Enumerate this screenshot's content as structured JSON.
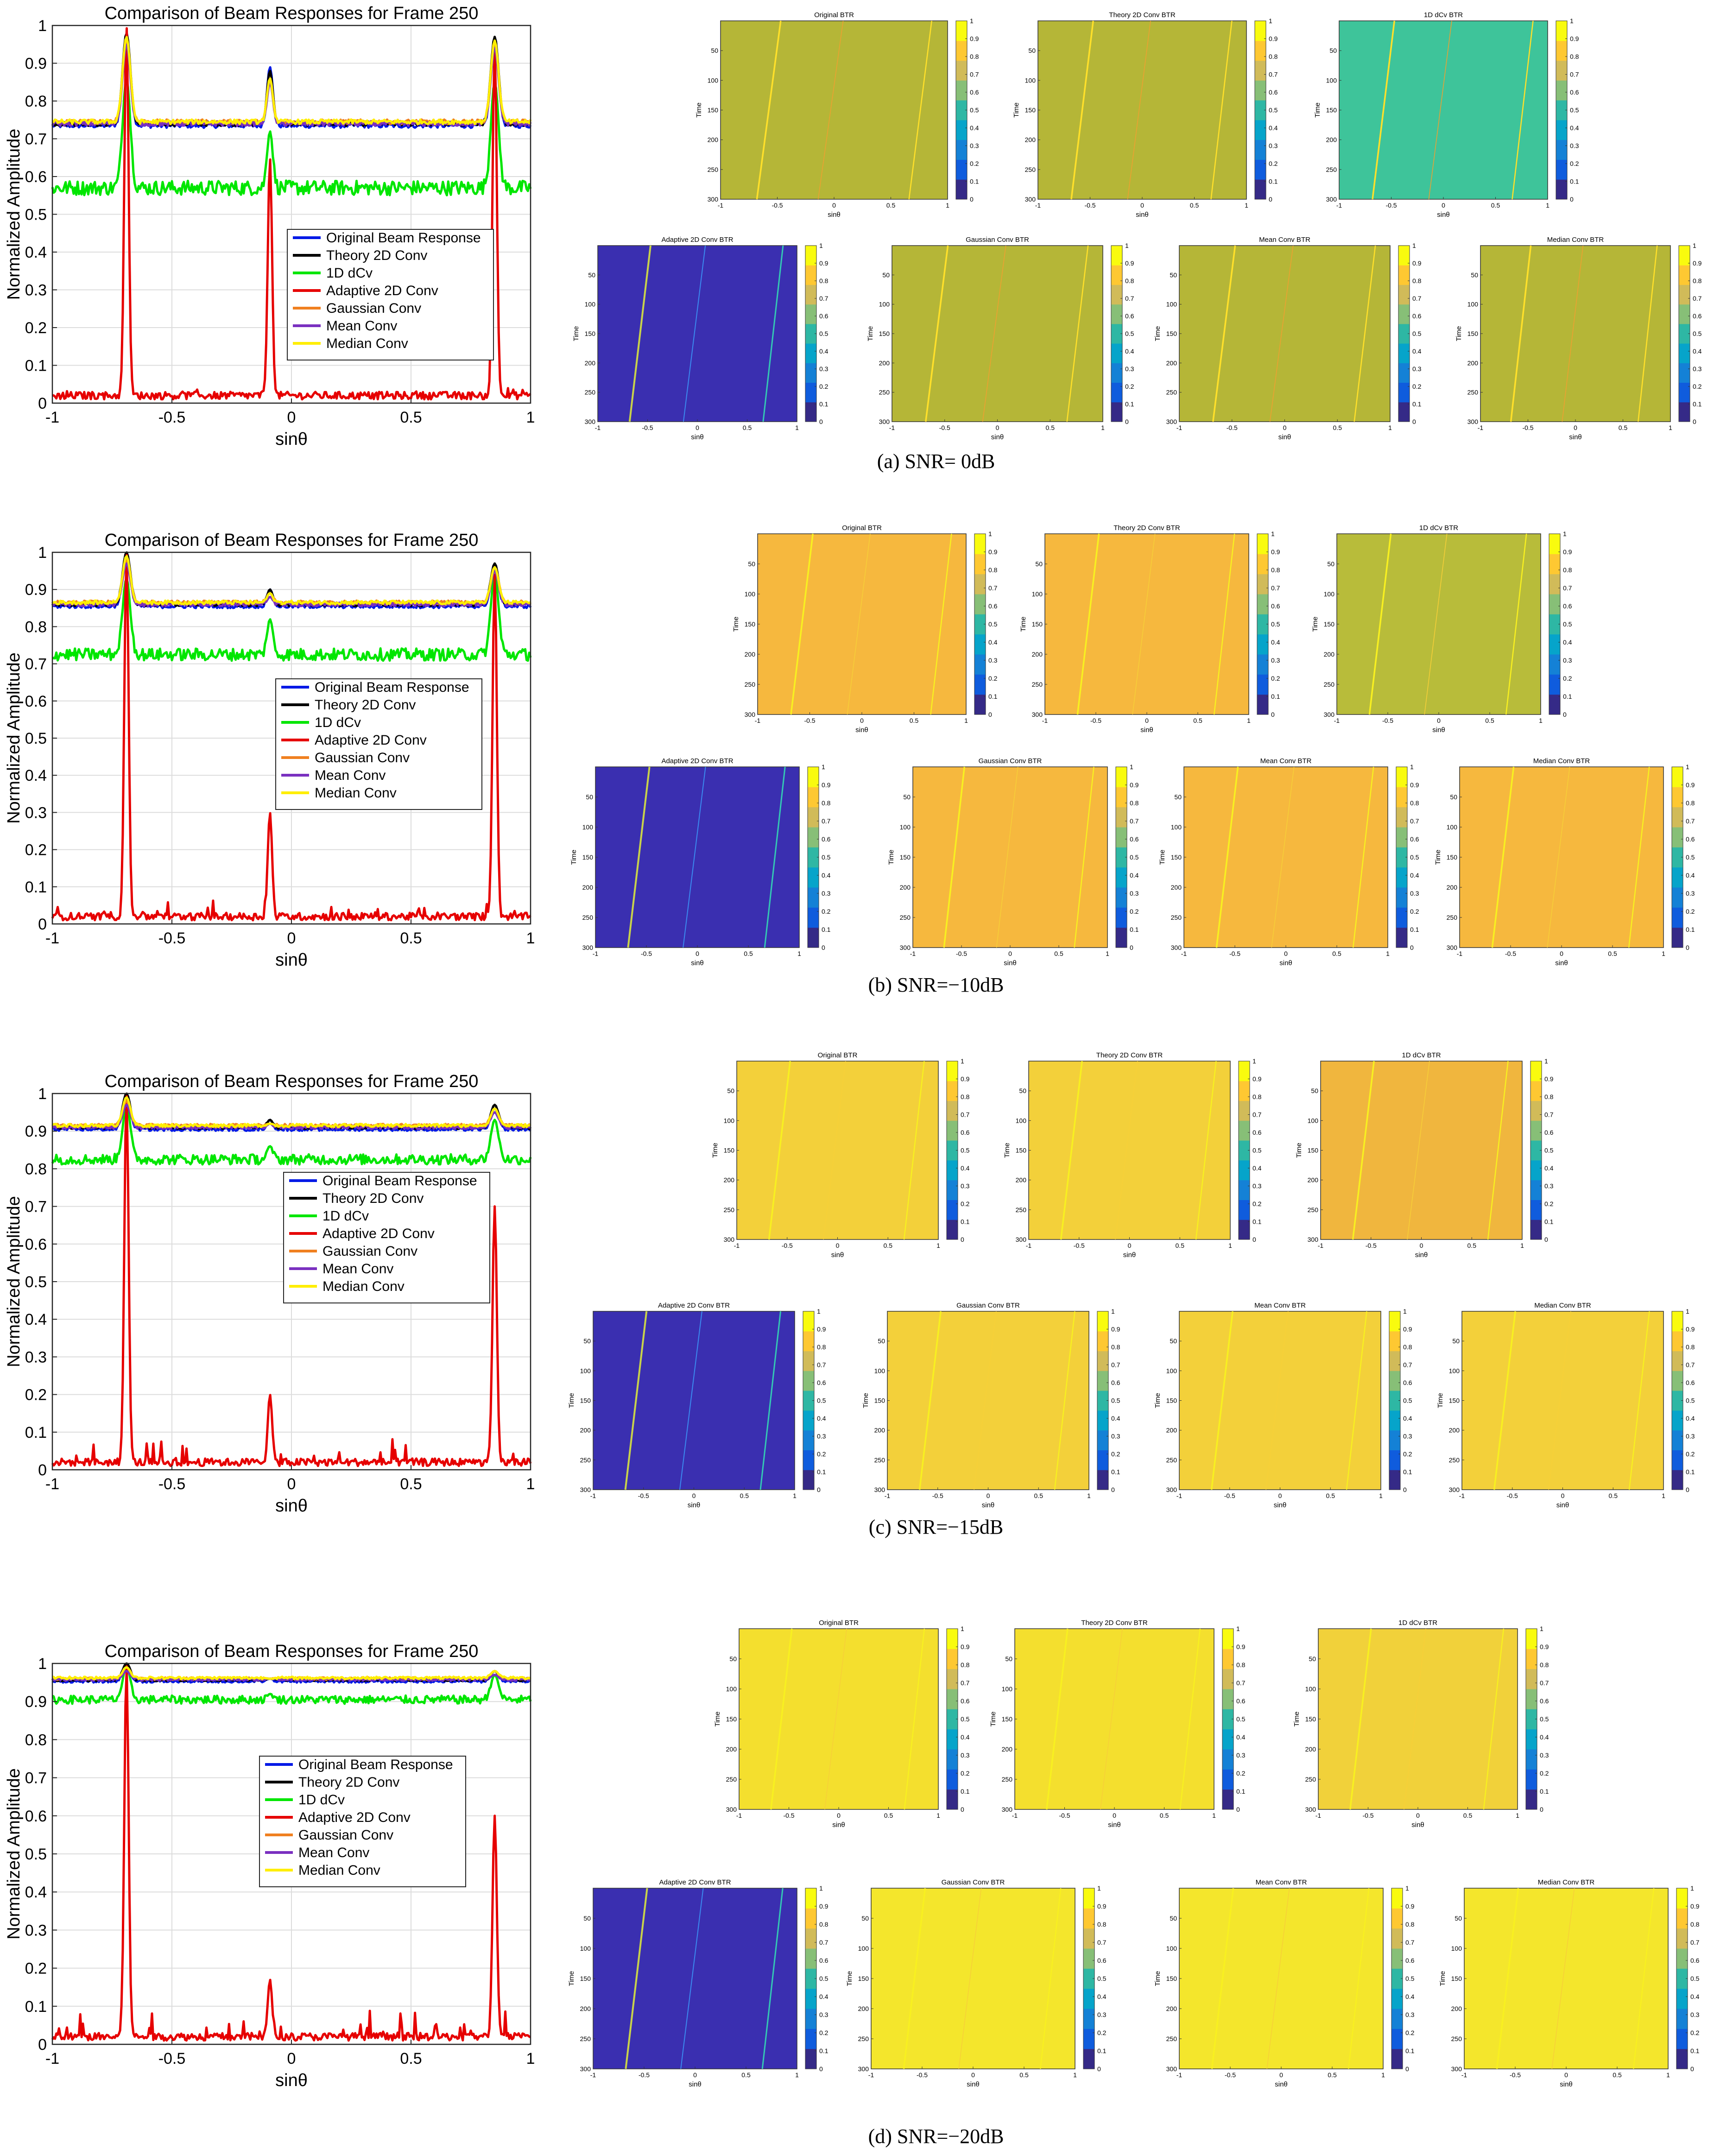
{
  "figure": {
    "rows": [
      {
        "caption": "(a) SNR= 0dB",
        "line_plot": {
          "title": "Comparison of Beam Responses for Frame 250",
          "xlabel": "sinθ",
          "ylabel": "Normalized Amplitude",
          "xlim": [
            -1,
            1
          ],
          "ylim": [
            0,
            1
          ],
          "xticks": [
            "-1",
            "-0.5",
            "0",
            "0.5",
            "1"
          ],
          "yticks": [
            "0",
            "0.1",
            "0.2",
            "0.3",
            "0.4",
            "0.5",
            "0.6",
            "0.7",
            "0.8",
            "0.9",
            "1"
          ]
        },
        "panels": [
          {
            "title": "Original BTR",
            "bg": "#b5b637"
          },
          {
            "title": "Theory 2D Conv BTR",
            "bg": "#b5b637"
          },
          {
            "title": "1D dCv BTR",
            "bg": "#3ec49a"
          },
          {
            "title": "Adaptive 2D Conv BTR",
            "bg": "#3a2fb0"
          },
          {
            "title": "Gaussian Conv BTR",
            "bg": "#b5b637"
          },
          {
            "title": "Mean Conv BTR",
            "bg": "#b5b637"
          },
          {
            "title": "Median Conv BTR",
            "bg": "#b5b637"
          }
        ]
      },
      {
        "caption": "(b) SNR=−10dB",
        "line_plot": {
          "title": "Comparison of Beam Responses for Frame 250",
          "xlabel": "sinθ",
          "ylabel": "Normalized Amplitude",
          "xlim": [
            -1,
            1
          ],
          "ylim": [
            0,
            1
          ],
          "xticks": [
            "-1",
            "-0.5",
            "0",
            "0.5",
            "1"
          ],
          "yticks": [
            "0",
            "0.1",
            "0.2",
            "0.3",
            "0.4",
            "0.5",
            "0.6",
            "0.7",
            "0.8",
            "0.9",
            "1"
          ]
        },
        "panels": [
          {
            "title": "Original BTR",
            "bg": "#f6b83e"
          },
          {
            "title": "Theory 2D Conv BTR",
            "bg": "#f6b83e"
          },
          {
            "title": "1D dCv BTR",
            "bg": "#b8bc3a"
          },
          {
            "title": "Adaptive 2D Conv BTR",
            "bg": "#3a2fb0"
          },
          {
            "title": "Gaussian Conv BTR",
            "bg": "#f6b83e"
          },
          {
            "title": "Mean Conv BTR",
            "bg": "#f6b83e"
          },
          {
            "title": "Median Conv BTR",
            "bg": "#f6b83e"
          }
        ]
      },
      {
        "caption": "(c) SNR=−15dB",
        "line_plot": {
          "title": "Comparison of Beam Responses for Frame 250",
          "xlabel": "sinθ",
          "ylabel": "Normalized Amplitude",
          "xlim": [
            -1,
            1
          ],
          "ylim": [
            0,
            1
          ],
          "xticks": [
            "-1",
            "-0.5",
            "0",
            "0.5",
            "1"
          ],
          "yticks": [
            "0",
            "0.1",
            "0.2",
            "0.3",
            "0.4",
            "0.5",
            "0.6",
            "0.7",
            "0.8",
            "0.9",
            "1"
          ]
        },
        "panels": [
          {
            "title": "Original BTR",
            "bg": "#f3d03a"
          },
          {
            "title": "Theory 2D Conv BTR",
            "bg": "#f3d03a"
          },
          {
            "title": "1D dCv BTR",
            "bg": "#f0b63e"
          },
          {
            "title": "Adaptive 2D Conv BTR",
            "bg": "#3a2fb0"
          },
          {
            "title": "Gaussian Conv BTR",
            "bg": "#f3d03a"
          },
          {
            "title": "Mean Conv BTR",
            "bg": "#f3d03a"
          },
          {
            "title": "Median Conv BTR",
            "bg": "#f3d03a"
          }
        ]
      },
      {
        "caption": "(d) SNR=−20dB",
        "line_plot": {
          "title": "Comparison of Beam Responses for Frame 250",
          "xlabel": "sinθ",
          "ylabel": "Normalized Amplitude",
          "xlim": [
            -1,
            1
          ],
          "ylim": [
            0,
            1
          ],
          "xticks": [
            "-1",
            "-0.5",
            "0",
            "0.5",
            "1"
          ],
          "yticks": [
            "0",
            "0.1",
            "0.2",
            "0.3",
            "0.4",
            "0.5",
            "0.6",
            "0.7",
            "0.8",
            "0.9",
            "1"
          ]
        },
        "panels": [
          {
            "title": "Original BTR",
            "bg": "#f4df2e"
          },
          {
            "title": "Theory 2D Conv BTR",
            "bg": "#f4df2e"
          },
          {
            "title": "1D dCv BTR",
            "bg": "#f1d13a"
          },
          {
            "title": "Adaptive 2D Conv BTR",
            "bg": "#3a2fb0"
          },
          {
            "title": "Gaussian Conv BTR",
            "bg": "#f4e62c"
          },
          {
            "title": "Mean Conv BTR",
            "bg": "#f4e62c"
          },
          {
            "title": "Median Conv BTR",
            "bg": "#f4e62c"
          }
        ]
      }
    ],
    "panel_labels": {
      "xlabel": "sinθ",
      "ylabel": "Time",
      "xticks": [
        "-1",
        "-0.5",
        "0",
        "0.5",
        "1"
      ],
      "yticks": [
        "50",
        "100",
        "150",
        "200",
        "250",
        "300"
      ],
      "cbar_ticks": [
        "0",
        "0.1",
        "0.2",
        "0.3",
        "0.4",
        "0.5",
        "0.6",
        "0.7",
        "0.8",
        "0.9",
        "1"
      ]
    },
    "legend": {
      "entries": [
        {
          "label": "Original Beam Response",
          "color": "#0019e6"
        },
        {
          "label": "Theory 2D Conv",
          "color": "#000000"
        },
        {
          "label": "1D dCv",
          "color": "#00e600"
        },
        {
          "label": "Adaptive 2D Conv",
          "color": "#e60000"
        },
        {
          "label": "Gaussian Conv",
          "color": "#f08020"
        },
        {
          "label": "Mean Conv",
          "color": "#7a30c0"
        },
        {
          "label": "Median Conv",
          "color": "#ffee00"
        }
      ]
    }
  },
  "chart_data": [
    {
      "type": "line",
      "title": "Comparison of Beam Responses for Frame 250",
      "subtitle": "(a) SNR= 0dB",
      "xlabel": "sinθ",
      "ylabel": "Normalized Amplitude",
      "xlim": [
        -1,
        1
      ],
      "ylim": [
        0,
        1
      ],
      "targets_sin_theta": [
        -0.69,
        -0.09,
        0.85
      ],
      "series": [
        {
          "name": "Original Beam Response",
          "baseline": 0.735,
          "peaks": [
            0.97,
            0.89,
            0.96
          ]
        },
        {
          "name": "Theory 2D Conv",
          "baseline": 0.74,
          "peaks": [
            0.98,
            0.88,
            0.97
          ]
        },
        {
          "name": "1D dCv",
          "baseline": 0.57,
          "peaks": [
            0.86,
            0.72,
            0.85
          ]
        },
        {
          "name": "Adaptive 2D Conv",
          "baseline": 0.01,
          "peaks": [
            1.0,
            0.65,
            0.95
          ]
        },
        {
          "name": "Gaussian Conv",
          "baseline": 0.745,
          "peaks": [
            0.96,
            0.86,
            0.95
          ]
        },
        {
          "name": "Mean Conv",
          "baseline": 0.74,
          "peaks": [
            0.95,
            0.85,
            0.94
          ]
        },
        {
          "name": "Median Conv",
          "baseline": 0.745,
          "peaks": [
            0.97,
            0.86,
            0.96
          ]
        }
      ]
    },
    {
      "type": "line",
      "title": "Comparison of Beam Responses for Frame 250",
      "subtitle": "(b) SNR=−10dB",
      "xlabel": "sinθ",
      "ylabel": "Normalized Amplitude",
      "xlim": [
        -1,
        1
      ],
      "ylim": [
        0,
        1
      ],
      "targets_sin_theta": [
        -0.69,
        -0.09,
        0.85
      ],
      "series": [
        {
          "name": "Original Beam Response",
          "baseline": 0.855,
          "peaks": [
            0.99,
            0.9,
            0.96
          ]
        },
        {
          "name": "Theory 2D Conv",
          "baseline": 0.86,
          "peaks": [
            1.0,
            0.9,
            0.97
          ]
        },
        {
          "name": "1D dCv",
          "baseline": 0.725,
          "peaks": [
            0.93,
            0.82,
            0.94
          ]
        },
        {
          "name": "Adaptive 2D Conv",
          "baseline": 0.01,
          "peaks": [
            1.0,
            0.3,
            0.94
          ]
        },
        {
          "name": "Gaussian Conv",
          "baseline": 0.865,
          "peaks": [
            0.98,
            0.89,
            0.96
          ]
        },
        {
          "name": "Mean Conv",
          "baseline": 0.86,
          "peaks": [
            0.97,
            0.88,
            0.95
          ]
        },
        {
          "name": "Median Conv",
          "baseline": 0.865,
          "peaks": [
            0.99,
            0.89,
            0.96
          ]
        }
      ]
    },
    {
      "type": "line",
      "title": "Comparison of Beam Responses for Frame 250",
      "subtitle": "(c) SNR=−15dB",
      "xlabel": "sinθ",
      "ylabel": "Normalized Amplitude",
      "xlim": [
        -1,
        1
      ],
      "ylim": [
        0,
        1
      ],
      "targets_sin_theta": [
        -0.69,
        -0.09,
        0.85
      ],
      "series": [
        {
          "name": "Original Beam Response",
          "baseline": 0.905,
          "peaks": [
            0.99,
            0.93,
            0.96
          ]
        },
        {
          "name": "Theory 2D Conv",
          "baseline": 0.91,
          "peaks": [
            1.0,
            0.93,
            0.97
          ]
        },
        {
          "name": "1D dCv",
          "baseline": 0.825,
          "peaks": [
            0.97,
            0.86,
            0.93
          ]
        },
        {
          "name": "Adaptive 2D Conv",
          "baseline": 0.01,
          "peaks": [
            1.0,
            0.2,
            0.7
          ]
        },
        {
          "name": "Gaussian Conv",
          "baseline": 0.915,
          "peaks": [
            0.98,
            0.92,
            0.96
          ]
        },
        {
          "name": "Mean Conv",
          "baseline": 0.91,
          "peaks": [
            0.97,
            0.92,
            0.95
          ]
        },
        {
          "name": "Median Conv",
          "baseline": 0.915,
          "peaks": [
            0.99,
            0.92,
            0.96
          ]
        }
      ]
    },
    {
      "type": "line",
      "title": "Comparison of Beam Responses for Frame 250",
      "subtitle": "(d) SNR=−20dB",
      "xlabel": "sinθ",
      "ylabel": "Normalized Amplitude",
      "xlim": [
        -1,
        1
      ],
      "ylim": [
        0,
        1
      ],
      "targets_sin_theta": [
        -0.69,
        -0.09,
        0.85
      ],
      "series": [
        {
          "name": "Original Beam Response",
          "baseline": 0.953,
          "peaks": [
            0.99,
            0.96,
            0.98
          ]
        },
        {
          "name": "Theory 2D Conv",
          "baseline": 0.957,
          "peaks": [
            1.0,
            0.96,
            0.98
          ]
        },
        {
          "name": "1D dCv",
          "baseline": 0.905,
          "peaks": [
            0.99,
            0.92,
            0.97
          ]
        },
        {
          "name": "Adaptive 2D Conv",
          "baseline": 0.01,
          "peaks": [
            1.0,
            0.17,
            0.6
          ]
        },
        {
          "name": "Gaussian Conv",
          "baseline": 0.96,
          "peaks": [
            0.99,
            0.96,
            0.98
          ]
        },
        {
          "name": "Mean Conv",
          "baseline": 0.958,
          "peaks": [
            0.98,
            0.96,
            0.97
          ]
        },
        {
          "name": "Median Conv",
          "baseline": 0.962,
          "peaks": [
            0.99,
            0.96,
            0.98
          ]
        }
      ]
    }
  ]
}
